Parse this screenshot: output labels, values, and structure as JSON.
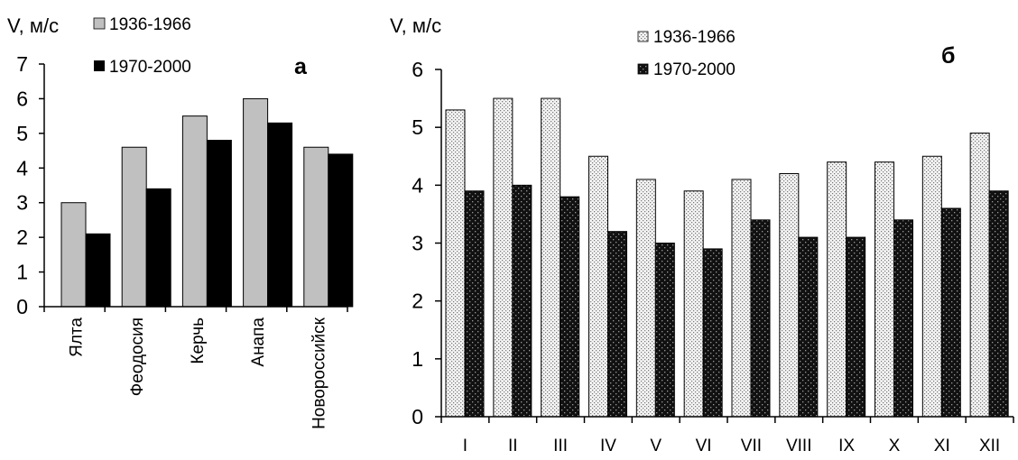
{
  "chart_data": [
    {
      "type": "bar",
      "panel_label": "а",
      "ylabel": "V, м/с",
      "ylim": [
        0,
        7
      ],
      "yticks": [
        0,
        1,
        2,
        3,
        4,
        5,
        6,
        7
      ],
      "categories": [
        "Ялта",
        "Феодосия",
        "Керчь",
        "Анапа",
        "Новороссийск"
      ],
      "series": [
        {
          "name": "1936-1966",
          "values": [
            3.0,
            4.6,
            5.5,
            6.0,
            4.6
          ],
          "color": "#c0c0c0"
        },
        {
          "name": "1970-2000",
          "values": [
            2.1,
            3.4,
            4.8,
            5.3,
            4.4
          ],
          "color": "#000000"
        }
      ],
      "legend_position": "top-left",
      "grid": false
    },
    {
      "type": "bar",
      "panel_label": "б",
      "ylabel": "V, м/с",
      "ylim": [
        0,
        6
      ],
      "yticks": [
        0,
        1,
        2,
        3,
        4,
        5,
        6
      ],
      "categories": [
        "I",
        "II",
        "III",
        "IV",
        "V",
        "VI",
        "VII",
        "VIII",
        "IX",
        "X",
        "XI",
        "XII"
      ],
      "series": [
        {
          "name": "1936-1966",
          "values": [
            5.3,
            5.5,
            5.5,
            4.5,
            4.1,
            3.9,
            4.1,
            4.2,
            4.4,
            4.4,
            4.5,
            4.9
          ],
          "pattern": "light-dotted"
        },
        {
          "name": "1970-2000",
          "values": [
            3.9,
            4.0,
            3.8,
            3.2,
            3.0,
            2.9,
            3.4,
            3.1,
            3.1,
            3.4,
            3.6,
            3.9
          ],
          "pattern": "dark-dotted"
        }
      ],
      "legend_position": "top-center",
      "grid": false
    }
  ]
}
